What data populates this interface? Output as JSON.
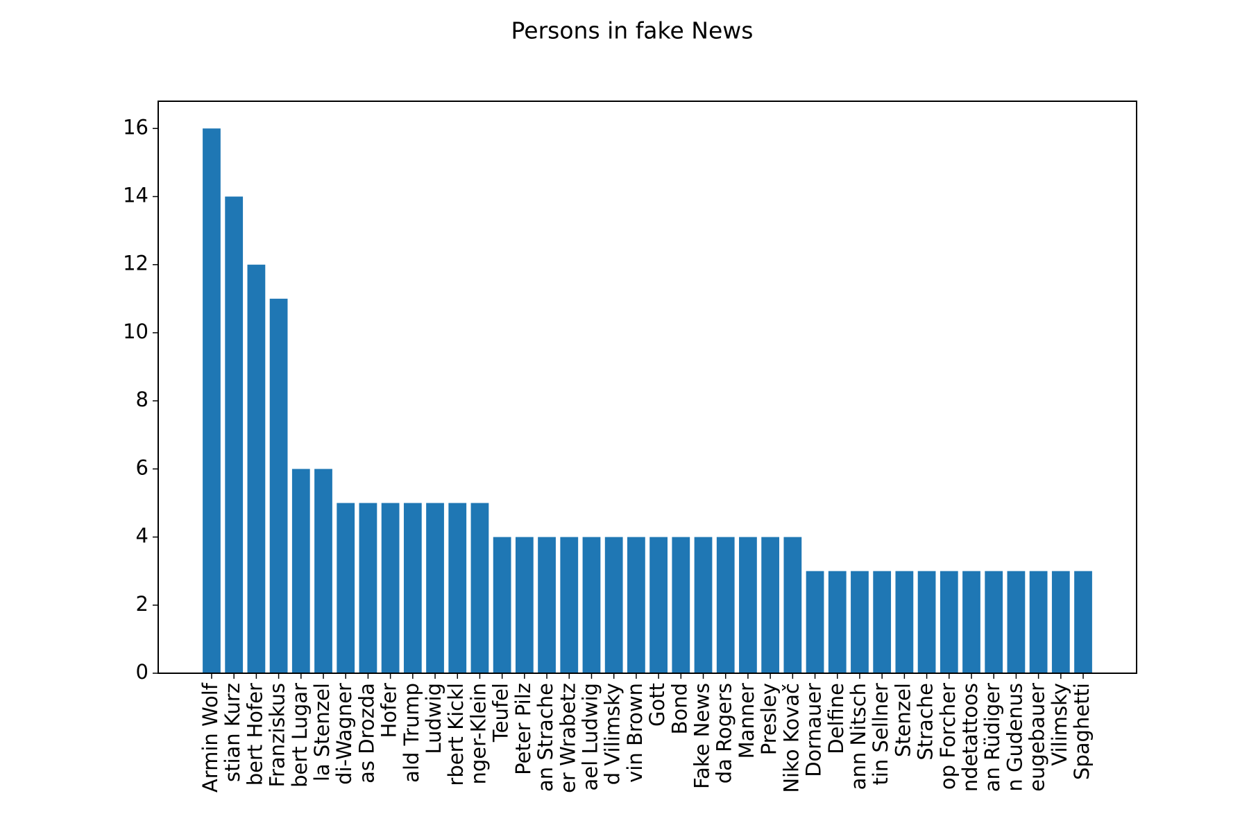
{
  "chart_data": {
    "type": "bar",
    "title": "Persons in fake News",
    "categories": [
      "Armin Wolf",
      "stian Kurz",
      "bert Hofer",
      "Franziskus",
      "bert Lugar",
      "la Stenzel",
      "di-Wagner",
      "as Drozda",
      "Hofer",
      "ald Trump",
      "Ludwig",
      "rbert Kickl",
      "nger-Klein",
      "Teufel",
      "Peter Pilz",
      "an Strache",
      "er Wrabetz",
      "ael Ludwig",
      "d Vilimsky",
      "vin Brown",
      "Gott",
      "Bond",
      "Fake News",
      "da Rogers",
      "Manner",
      "Presley",
      "Niko Kovač",
      "Dornauer",
      "Delfine",
      "ann Nitsch",
      "tin Sellner",
      "Stenzel",
      "Strache",
      "op Forcher",
      "ndetattoos",
      "an Rüdiger",
      "n Gudenus",
      "eugebauer",
      "Vilimsky",
      "Spaghetti"
    ],
    "values": [
      16,
      14,
      12,
      11,
      6,
      6,
      5,
      5,
      5,
      5,
      5,
      5,
      5,
      4,
      4,
      4,
      4,
      4,
      4,
      4,
      4,
      4,
      4,
      4,
      4,
      4,
      4,
      3,
      3,
      3,
      3,
      3,
      3,
      3,
      3,
      3,
      3,
      3,
      3,
      3
    ],
    "color": "#1f77b4",
    "ylim": [
      0,
      16.8
    ],
    "yticks": [
      0,
      2,
      4,
      6,
      8,
      10,
      12,
      14,
      16
    ],
    "grid": false
  }
}
